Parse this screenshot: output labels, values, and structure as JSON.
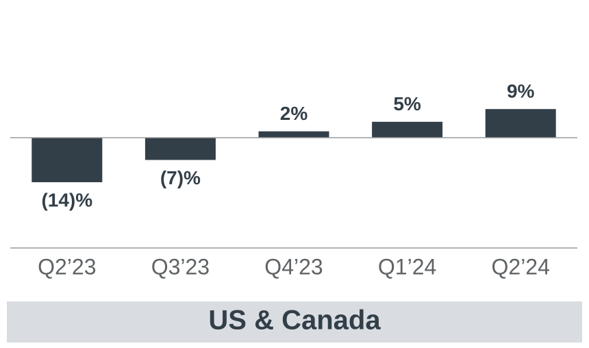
{
  "chart_data": {
    "type": "bar",
    "title": "US & Canada",
    "categories": [
      "Q2’23",
      "Q3’23",
      "Q4’23",
      "Q1’24",
      "Q2’24"
    ],
    "values": [
      -14,
      -7,
      2,
      5,
      9
    ],
    "value_labels": [
      "(14)%",
      "(7)%",
      "2%",
      "5%",
      "9%"
    ],
    "color": "#333f48"
  }
}
